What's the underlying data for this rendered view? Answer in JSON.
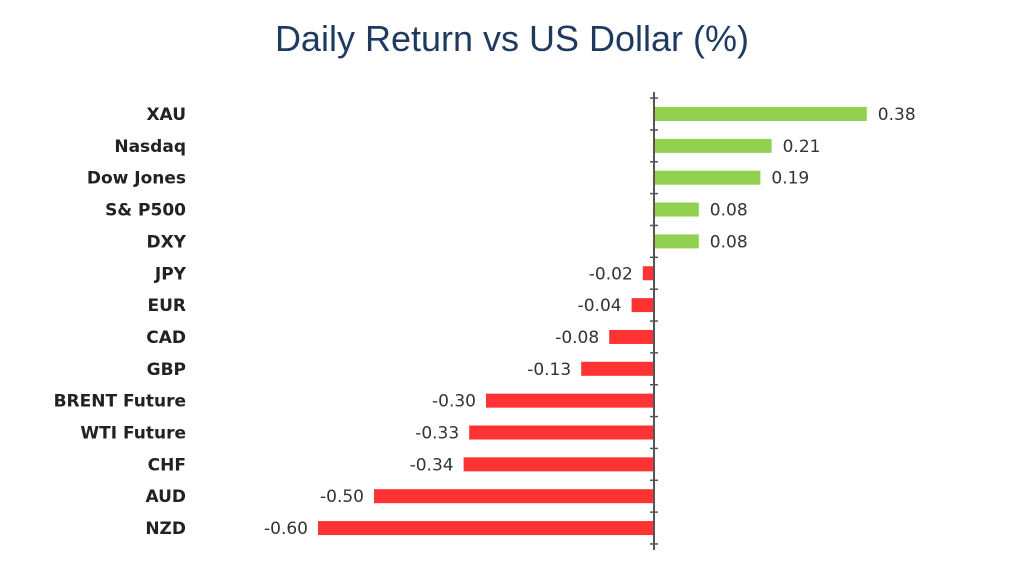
{
  "chart_data": {
    "type": "bar",
    "orientation": "horizontal",
    "title": "Daily Return vs US Dollar (%)",
    "categories": [
      "XAU",
      "Nasdaq",
      "Dow Jones",
      "S& P500",
      "DXY",
      "JPY",
      "EUR",
      "CAD",
      "GBP",
      "BRENT Future",
      "WTI Future",
      "CHF",
      "AUD",
      "NZD"
    ],
    "values": [
      0.38,
      0.21,
      0.19,
      0.08,
      0.08,
      -0.02,
      -0.04,
      -0.08,
      -0.13,
      -0.3,
      -0.33,
      -0.34,
      -0.5,
      -0.6
    ],
    "value_labels": [
      "0.38",
      "0.21",
      "0.19",
      "0.08",
      "0.08",
      "-0.02",
      "-0.04",
      "-0.08",
      "-0.13",
      "-0.30",
      "-0.33",
      "-0.34",
      "-0.50",
      "-0.60"
    ],
    "colors": {
      "positive": "#92d050",
      "negative": "#ff3333",
      "axis": "#555555"
    },
    "grid": false,
    "legend": "none"
  }
}
